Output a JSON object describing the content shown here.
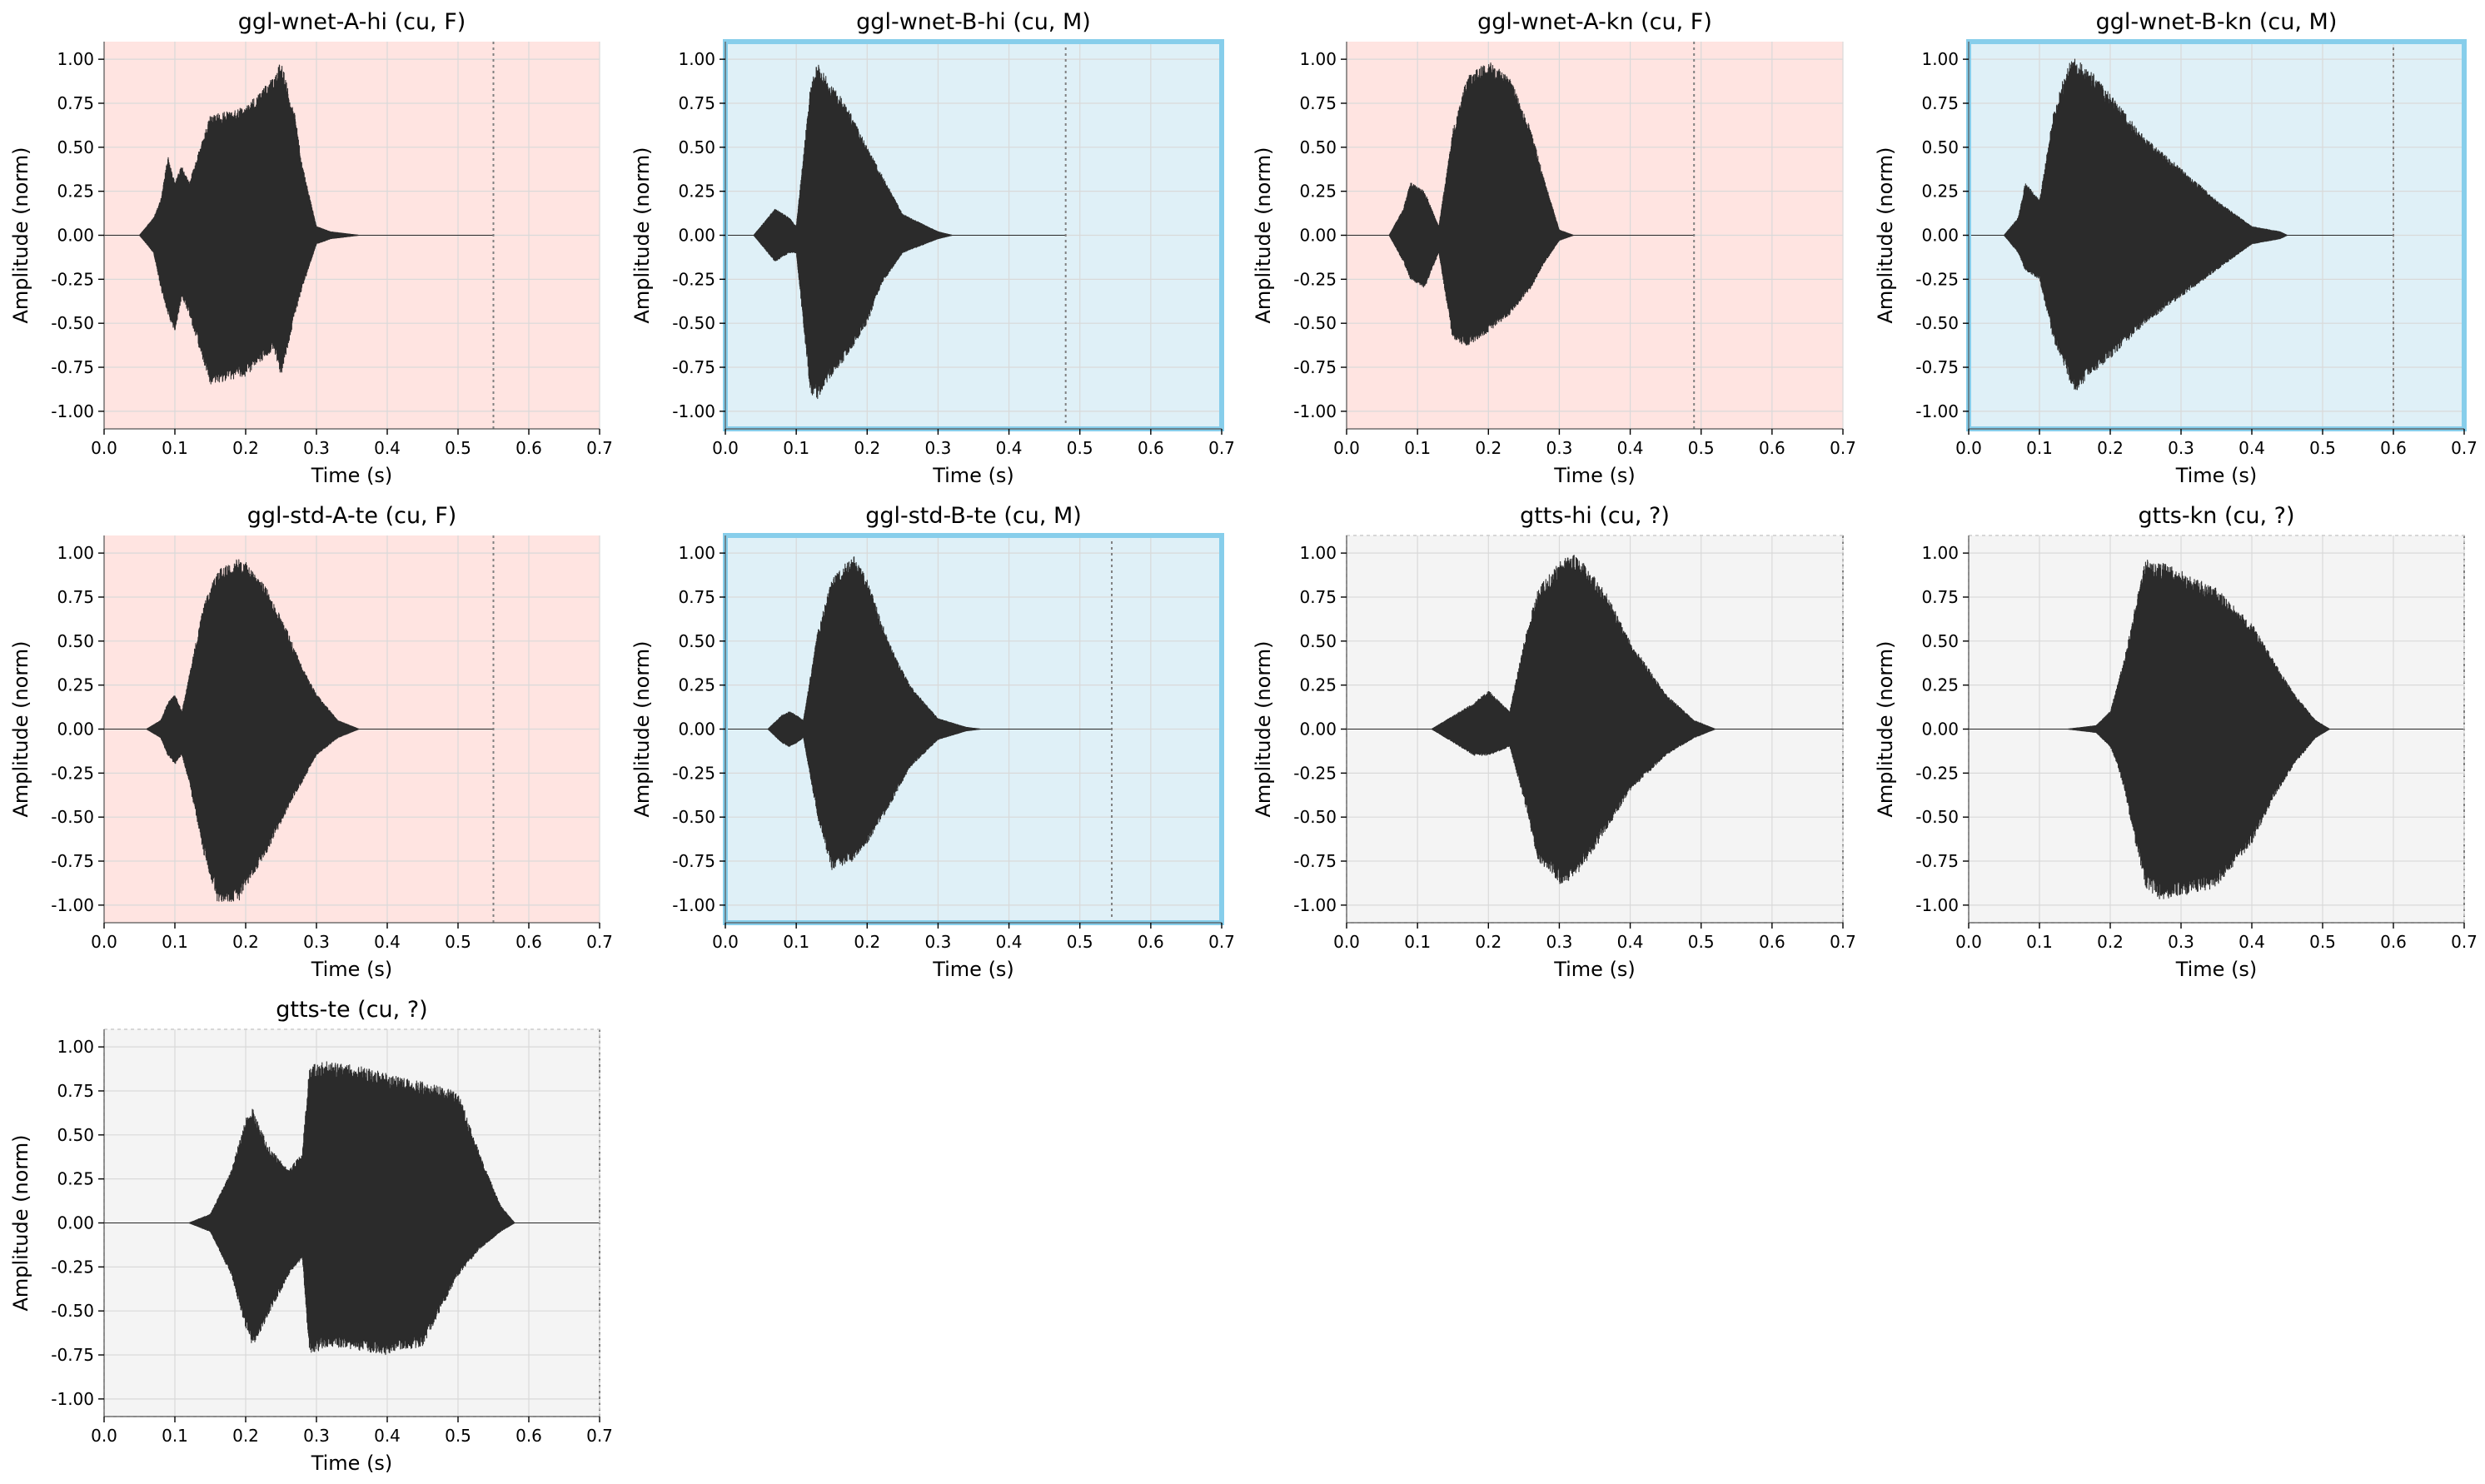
{
  "colors": {
    "female_bg": "#ffe4e1",
    "male_bg": "#dff0f7",
    "unknown_bg": "#f4f4f4",
    "male_border": "#87ceeb",
    "unknown_border": "#cccccc",
    "grid": "#d9d9d9",
    "waveform": "#2b2b2b",
    "end_marker": "#808080"
  },
  "chart_data": [
    {
      "type": "line",
      "title": "ggl-wnet-A-hi (cu, F)",
      "gender": "F",
      "xlabel": "Time (s)",
      "ylabel": "Amplitude (norm)",
      "xlim": [
        0,
        0.7
      ],
      "ylim": [
        -1.1,
        1.1
      ],
      "xticks": [
        "0.0",
        "0.1",
        "0.2",
        "0.3",
        "0.4",
        "0.5",
        "0.6",
        "0.7"
      ],
      "yticks": [
        "-1.00",
        "-0.75",
        "-0.50",
        "-0.25",
        "0.00",
        "0.25",
        "0.50",
        "0.75",
        "1.00"
      ],
      "grid": true,
      "end_time": 0.55,
      "envelope": {
        "t": [
          0.0,
          0.05,
          0.07,
          0.08,
          0.09,
          0.1,
          0.11,
          0.12,
          0.15,
          0.2,
          0.24,
          0.25,
          0.27,
          0.28,
          0.3,
          0.32,
          0.36,
          0.55
        ],
        "upper": [
          0.0,
          0.0,
          0.1,
          0.2,
          0.45,
          0.3,
          0.4,
          0.3,
          0.68,
          0.73,
          0.9,
          0.99,
          0.68,
          0.4,
          0.05,
          0.02,
          0.0,
          0.0
        ],
        "lower": [
          0.0,
          0.0,
          -0.1,
          -0.3,
          -0.45,
          -0.55,
          -0.35,
          -0.45,
          -0.85,
          -0.8,
          -0.65,
          -0.8,
          -0.45,
          -0.3,
          -0.05,
          -0.02,
          0.0,
          0.0
        ]
      }
    },
    {
      "type": "line",
      "title": "ggl-wnet-B-hi (cu, M)",
      "gender": "M",
      "xlabel": "Time (s)",
      "ylabel": "Amplitude (norm)",
      "xlim": [
        0,
        0.7
      ],
      "ylim": [
        -1.1,
        1.1
      ],
      "xticks": [
        "0.0",
        "0.1",
        "0.2",
        "0.3",
        "0.4",
        "0.5",
        "0.6",
        "0.7"
      ],
      "yticks": [
        "-1.00",
        "-0.75",
        "-0.50",
        "-0.25",
        "0.00",
        "0.25",
        "0.50",
        "0.75",
        "1.00"
      ],
      "grid": true,
      "end_time": 0.48,
      "envelope": {
        "t": [
          0.0,
          0.04,
          0.06,
          0.07,
          0.09,
          0.1,
          0.12,
          0.13,
          0.15,
          0.17,
          0.2,
          0.22,
          0.25,
          0.3,
          0.32,
          0.48
        ],
        "upper": [
          0.0,
          0.0,
          0.1,
          0.15,
          0.1,
          0.05,
          0.85,
          0.98,
          0.85,
          0.75,
          0.5,
          0.35,
          0.12,
          0.02,
          0.0,
          0.0
        ],
        "lower": [
          0.0,
          0.0,
          -0.1,
          -0.15,
          -0.1,
          -0.1,
          -0.9,
          -0.93,
          -0.8,
          -0.7,
          -0.5,
          -0.28,
          -0.1,
          -0.02,
          0.0,
          0.0
        ]
      }
    },
    {
      "type": "line",
      "title": "ggl-wnet-A-kn (cu, F)",
      "gender": "F",
      "xlabel": "Time (s)",
      "ylabel": "Amplitude (norm)",
      "xlim": [
        0,
        0.7
      ],
      "ylim": [
        -1.1,
        1.1
      ],
      "xticks": [
        "0.0",
        "0.1",
        "0.2",
        "0.3",
        "0.4",
        "0.5",
        "0.6",
        "0.7"
      ],
      "yticks": [
        "-1.00",
        "-0.75",
        "-0.50",
        "-0.25",
        "0.00",
        "0.25",
        "0.50",
        "0.75",
        "1.00"
      ],
      "grid": true,
      "end_time": 0.49,
      "envelope": {
        "t": [
          0.0,
          0.06,
          0.08,
          0.09,
          0.11,
          0.13,
          0.15,
          0.17,
          0.2,
          0.23,
          0.26,
          0.28,
          0.3,
          0.32,
          0.49
        ],
        "upper": [
          0.0,
          0.0,
          0.15,
          0.3,
          0.25,
          0.05,
          0.6,
          0.9,
          0.99,
          0.9,
          0.6,
          0.3,
          0.03,
          0.0,
          0.0
        ],
        "lower": [
          0.0,
          0.0,
          -0.15,
          -0.25,
          -0.3,
          -0.1,
          -0.6,
          -0.63,
          -0.55,
          -0.45,
          -0.3,
          -0.15,
          -0.03,
          0.0,
          0.0
        ]
      }
    },
    {
      "type": "line",
      "title": "ggl-wnet-B-kn (cu, M)",
      "gender": "M",
      "xlabel": "Time (s)",
      "ylabel": "Amplitude (norm)",
      "xlim": [
        0,
        0.7
      ],
      "ylim": [
        -1.1,
        1.1
      ],
      "xticks": [
        "0.0",
        "0.1",
        "0.2",
        "0.3",
        "0.4",
        "0.5",
        "0.6",
        "0.7"
      ],
      "yticks": [
        "-1.00",
        "-0.75",
        "-0.50",
        "-0.25",
        "0.00",
        "0.25",
        "0.50",
        "0.75",
        "1.00"
      ],
      "grid": true,
      "end_time": 0.6,
      "envelope": {
        "t": [
          0.0,
          0.05,
          0.07,
          0.08,
          0.1,
          0.12,
          0.14,
          0.15,
          0.17,
          0.2,
          0.25,
          0.3,
          0.35,
          0.4,
          0.44,
          0.45,
          0.6
        ],
        "upper": [
          0.0,
          0.0,
          0.1,
          0.3,
          0.2,
          0.7,
          0.98,
          1.0,
          0.95,
          0.8,
          0.55,
          0.38,
          0.2,
          0.05,
          0.02,
          0.0,
          0.0
        ],
        "lower": [
          0.0,
          0.0,
          -0.1,
          -0.2,
          -0.25,
          -0.6,
          -0.8,
          -0.9,
          -0.8,
          -0.7,
          -0.5,
          -0.35,
          -0.2,
          -0.05,
          -0.02,
          0.0,
          0.0
        ]
      }
    },
    {
      "type": "line",
      "title": "ggl-std-A-te (cu, F)",
      "gender": "F",
      "xlabel": "Time (s)",
      "ylabel": "Amplitude (norm)",
      "xlim": [
        0,
        0.7
      ],
      "ylim": [
        -1.1,
        1.1
      ],
      "xticks": [
        "0.0",
        "0.1",
        "0.2",
        "0.3",
        "0.4",
        "0.5",
        "0.6",
        "0.7"
      ],
      "yticks": [
        "-1.00",
        "-0.75",
        "-0.50",
        "-0.25",
        "0.00",
        "0.25",
        "0.50",
        "0.75",
        "1.00"
      ],
      "grid": true,
      "end_time": 0.55,
      "envelope": {
        "t": [
          0.0,
          0.06,
          0.08,
          0.09,
          0.1,
          0.11,
          0.12,
          0.14,
          0.16,
          0.19,
          0.2,
          0.23,
          0.26,
          0.28,
          0.3,
          0.33,
          0.36,
          0.55
        ],
        "upper": [
          0.0,
          0.0,
          0.05,
          0.15,
          0.2,
          0.1,
          0.3,
          0.7,
          0.9,
          0.97,
          0.95,
          0.8,
          0.55,
          0.35,
          0.2,
          0.05,
          0.0,
          0.0
        ],
        "lower": [
          0.0,
          0.0,
          -0.05,
          -0.15,
          -0.2,
          -0.15,
          -0.3,
          -0.7,
          -0.98,
          -0.98,
          -0.9,
          -0.7,
          -0.45,
          -0.3,
          -0.15,
          -0.05,
          0.0,
          0.0
        ]
      }
    },
    {
      "type": "line",
      "title": "ggl-std-B-te (cu, M)",
      "gender": "M",
      "xlabel": "Time (s)",
      "ylabel": "Amplitude (norm)",
      "xlim": [
        0,
        0.7
      ],
      "ylim": [
        -1.1,
        1.1
      ],
      "xticks": [
        "0.0",
        "0.1",
        "0.2",
        "0.3",
        "0.4",
        "0.5",
        "0.6",
        "0.7"
      ],
      "yticks": [
        "-1.00",
        "-0.75",
        "-0.50",
        "-0.25",
        "0.00",
        "0.25",
        "0.50",
        "0.75",
        "1.00"
      ],
      "grid": true,
      "end_time": 0.545,
      "envelope": {
        "t": [
          0.0,
          0.06,
          0.08,
          0.09,
          0.1,
          0.11,
          0.13,
          0.15,
          0.18,
          0.2,
          0.23,
          0.26,
          0.3,
          0.34,
          0.36,
          0.545
        ],
        "upper": [
          0.0,
          0.0,
          0.08,
          0.1,
          0.08,
          0.05,
          0.55,
          0.85,
          0.99,
          0.85,
          0.5,
          0.25,
          0.06,
          0.01,
          0.0,
          0.0
        ],
        "lower": [
          0.0,
          0.0,
          -0.08,
          -0.1,
          -0.08,
          -0.05,
          -0.5,
          -0.8,
          -0.75,
          -0.65,
          -0.45,
          -0.22,
          -0.06,
          -0.01,
          0.0,
          0.0
        ]
      }
    },
    {
      "type": "line",
      "title": "gtts-hi (cu, ?)",
      "gender": "?",
      "xlabel": "Time (s)",
      "ylabel": "Amplitude (norm)",
      "xlim": [
        0,
        0.7
      ],
      "ylim": [
        -1.1,
        1.1
      ],
      "xticks": [
        "0.0",
        "0.1",
        "0.2",
        "0.3",
        "0.4",
        "0.5",
        "0.6",
        "0.7"
      ],
      "yticks": [
        "-1.00",
        "-0.75",
        "-0.50",
        "-0.25",
        "0.00",
        "0.25",
        "0.50",
        "0.75",
        "1.00"
      ],
      "grid": true,
      "end_time": 0.7,
      "envelope": {
        "t": [
          0.0,
          0.12,
          0.14,
          0.18,
          0.2,
          0.23,
          0.25,
          0.27,
          0.3,
          0.32,
          0.34,
          0.37,
          0.4,
          0.45,
          0.49,
          0.52,
          0.7
        ],
        "upper": [
          0.0,
          0.0,
          0.05,
          0.15,
          0.22,
          0.1,
          0.5,
          0.8,
          0.95,
          1.0,
          0.92,
          0.75,
          0.5,
          0.2,
          0.05,
          0.0,
          0.0
        ],
        "lower": [
          0.0,
          0.0,
          -0.05,
          -0.15,
          -0.15,
          -0.1,
          -0.4,
          -0.75,
          -0.88,
          -0.85,
          -0.75,
          -0.55,
          -0.35,
          -0.15,
          -0.05,
          0.0,
          0.0
        ]
      }
    },
    {
      "type": "line",
      "title": "gtts-kn (cu, ?)",
      "gender": "?",
      "xlabel": "Time (s)",
      "ylabel": "Amplitude (norm)",
      "xlim": [
        0,
        0.7
      ],
      "ylim": [
        -1.1,
        1.1
      ],
      "xticks": [
        "0.0",
        "0.1",
        "0.2",
        "0.3",
        "0.4",
        "0.5",
        "0.6",
        "0.7"
      ],
      "yticks": [
        "-1.00",
        "-0.75",
        "-0.50",
        "-0.25",
        "0.00",
        "0.25",
        "0.50",
        "0.75",
        "1.00"
      ],
      "grid": true,
      "end_time": 0.7,
      "envelope": {
        "t": [
          0.0,
          0.14,
          0.16,
          0.18,
          0.2,
          0.21,
          0.22,
          0.23,
          0.25,
          0.27,
          0.3,
          0.35,
          0.4,
          0.43,
          0.46,
          0.49,
          0.51,
          0.7
        ],
        "upper": [
          0.0,
          0.0,
          0.01,
          0.02,
          0.1,
          0.25,
          0.4,
          0.6,
          0.97,
          0.95,
          0.9,
          0.8,
          0.6,
          0.4,
          0.2,
          0.05,
          0.0,
          0.0
        ],
        "lower": [
          0.0,
          0.0,
          -0.01,
          -0.02,
          -0.1,
          -0.2,
          -0.35,
          -0.55,
          -0.9,
          -0.97,
          -0.95,
          -0.9,
          -0.65,
          -0.4,
          -0.2,
          -0.05,
          0.0,
          0.0
        ]
      }
    },
    {
      "type": "line",
      "title": "gtts-te (cu, ?)",
      "gender": "?",
      "xlabel": "Time (s)",
      "ylabel": "Amplitude (norm)",
      "xlim": [
        0,
        0.7
      ],
      "ylim": [
        -1.1,
        1.1
      ],
      "xticks": [
        "0.0",
        "0.1",
        "0.2",
        "0.3",
        "0.4",
        "0.5",
        "0.6",
        "0.7"
      ],
      "yticks": [
        "-1.00",
        "-0.75",
        "-0.50",
        "-0.25",
        "0.00",
        "0.25",
        "0.50",
        "0.75",
        "1.00"
      ],
      "grid": true,
      "end_time": 0.7,
      "envelope": {
        "t": [
          0.0,
          0.12,
          0.15,
          0.18,
          0.2,
          0.21,
          0.23,
          0.26,
          0.28,
          0.29,
          0.32,
          0.35,
          0.4,
          0.45,
          0.5,
          0.53,
          0.56,
          0.58,
          0.7
        ],
        "upper": [
          0.0,
          0.0,
          0.05,
          0.3,
          0.6,
          0.65,
          0.45,
          0.3,
          0.4,
          0.9,
          0.92,
          0.9,
          0.85,
          0.8,
          0.75,
          0.4,
          0.1,
          0.0,
          0.0
        ],
        "lower": [
          0.0,
          0.0,
          -0.05,
          -0.3,
          -0.6,
          -0.7,
          -0.55,
          -0.3,
          -0.2,
          -0.75,
          -0.7,
          -0.72,
          -0.75,
          -0.7,
          -0.3,
          -0.15,
          -0.05,
          0.0,
          0.0
        ]
      }
    }
  ]
}
